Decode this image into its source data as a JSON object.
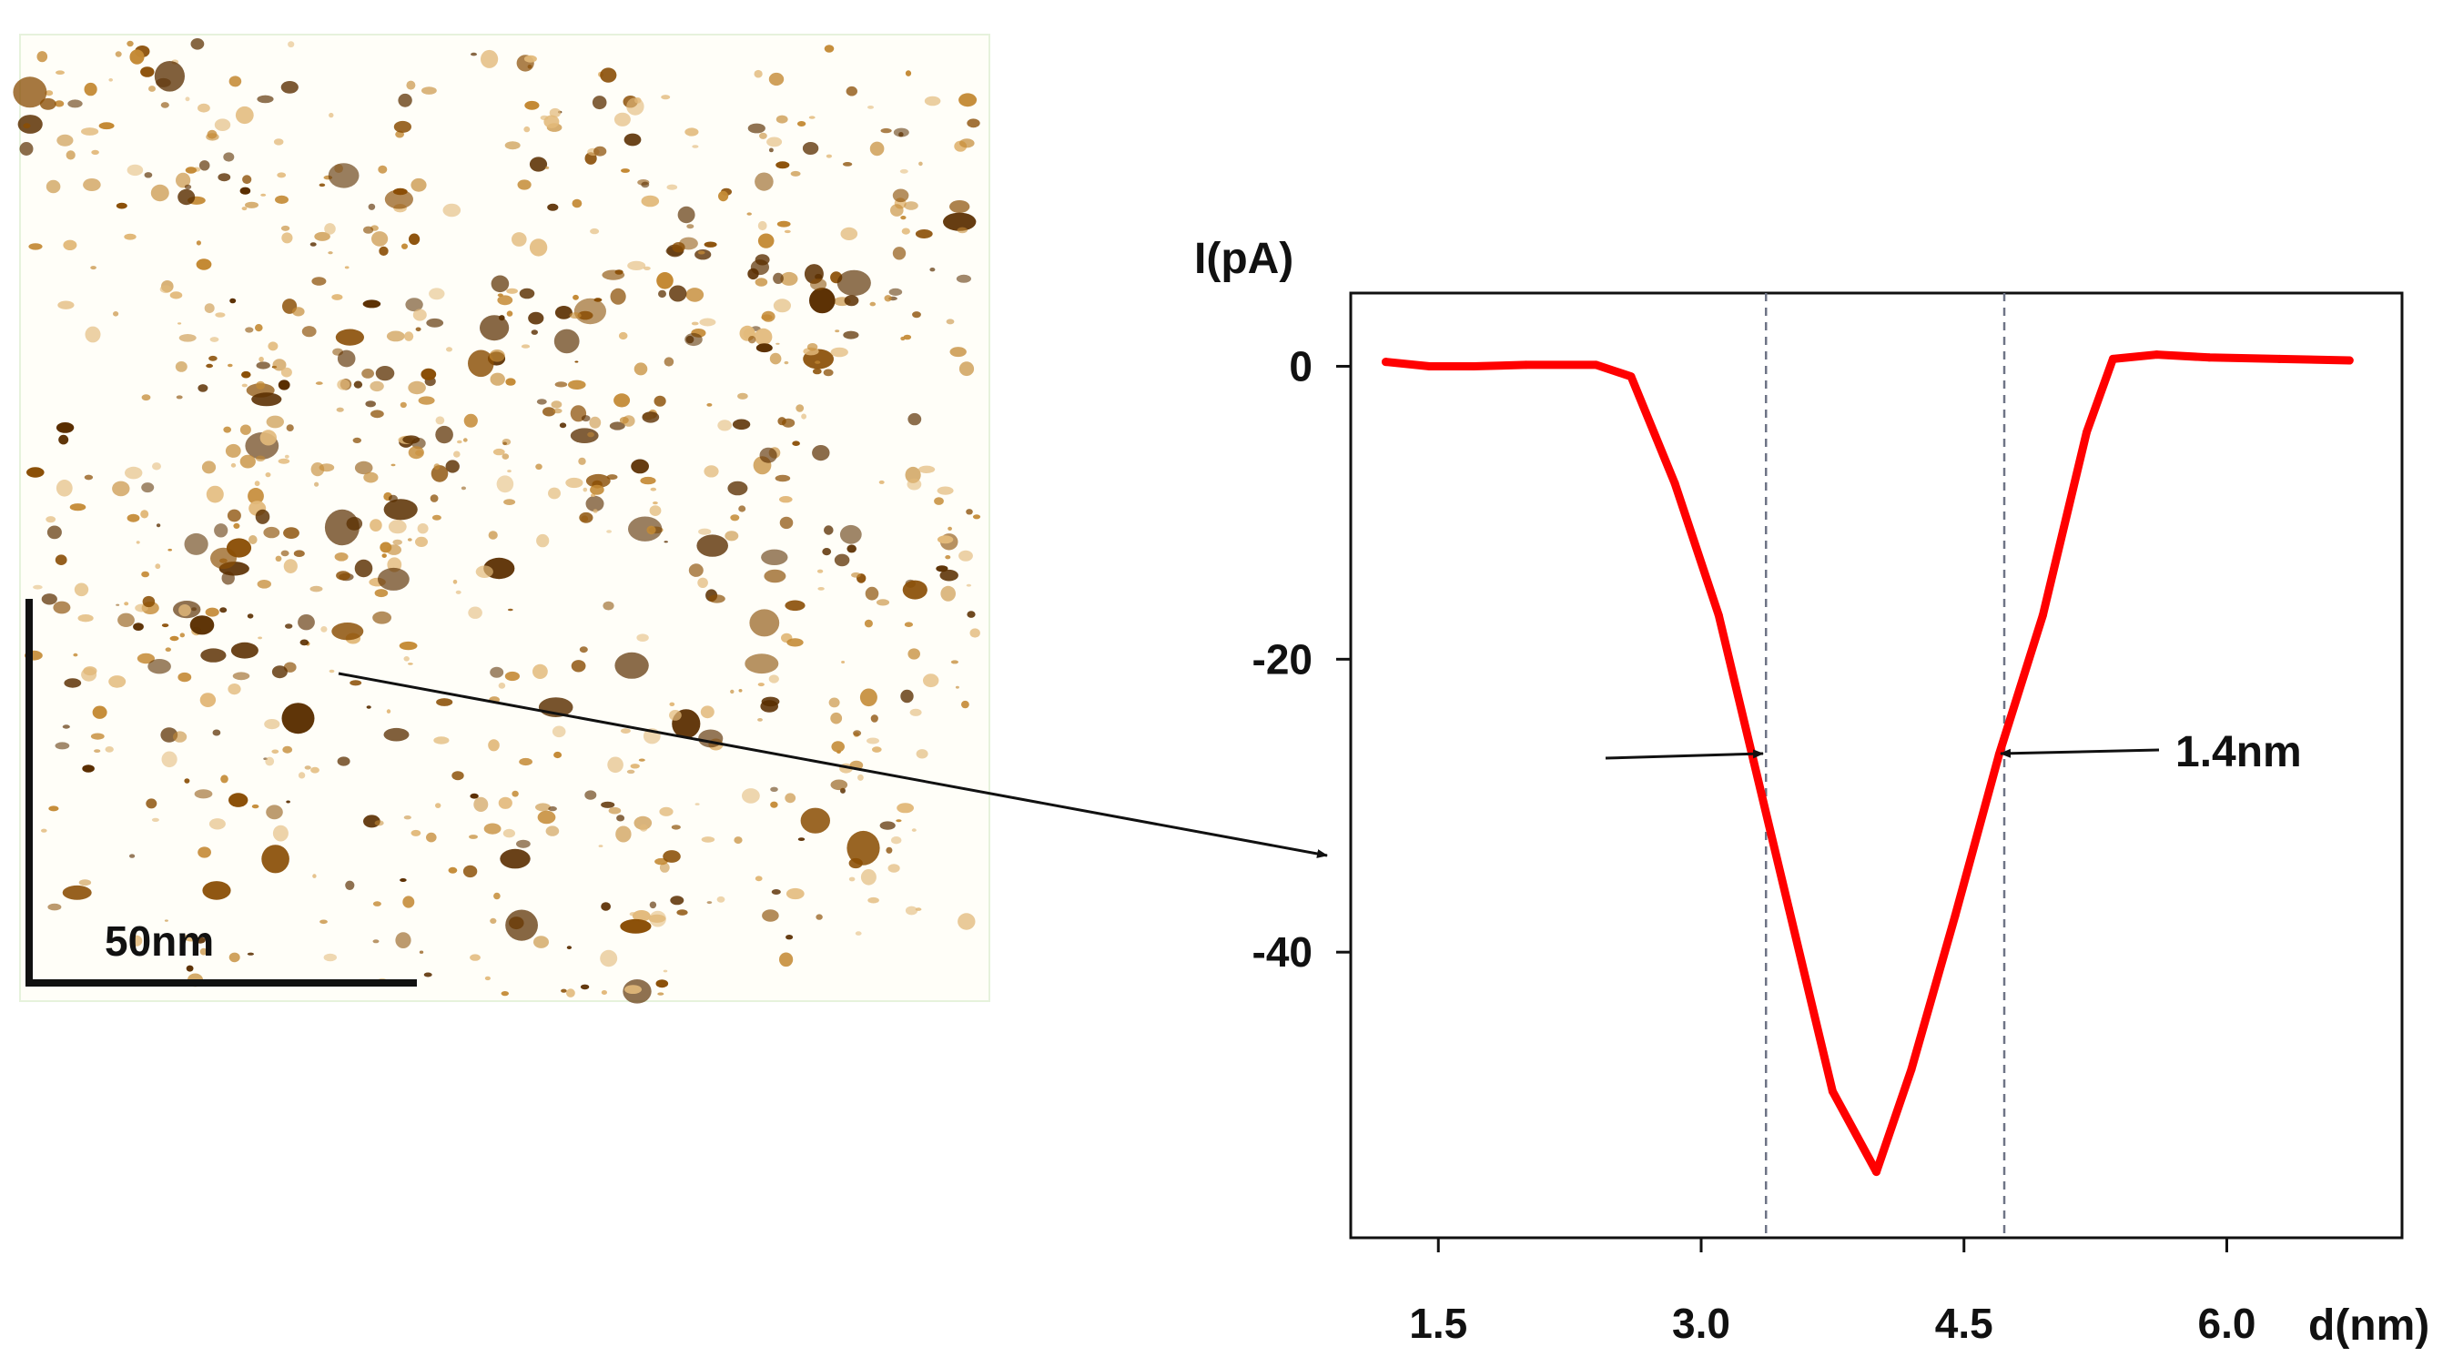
{
  "image_panel": {
    "scale_bar_label": "50nm",
    "colors": {
      "background": "#fffef8",
      "light": "#e2b97a",
      "mid": "#c48a35",
      "dark": "#8a4e05",
      "darkest": "#5a2e00"
    }
  },
  "chart_data": {
    "type": "line",
    "title": "",
    "xlabel": "d(nm)",
    "ylabel": "I(pA)",
    "xlim": [
      1.0,
      7.0
    ],
    "ylim": [
      -59.5,
      5
    ],
    "xticks": [
      "1.5",
      "3.0",
      "4.5",
      "6.0"
    ],
    "xtick_values": [
      1.5,
      3.0,
      4.5,
      6.0
    ],
    "yticks": [
      "0",
      "-20",
      "-40"
    ],
    "ytick_values": [
      0,
      -20,
      -40
    ],
    "grid": false,
    "series": [
      {
        "color": "#ff0000",
        "x": [
          1.2,
          1.45,
          1.7,
          2.0,
          2.4,
          2.6,
          2.85,
          3.1,
          3.3,
          3.5,
          3.75,
          4.0,
          4.2,
          4.45,
          4.7,
          4.95,
          5.2,
          5.35,
          5.6,
          5.9,
          6.3,
          6.7
        ],
        "y": [
          0.3,
          0.0,
          0.0,
          0.1,
          0.1,
          -0.7,
          -8.0,
          -17.0,
          -27.0,
          -37.0,
          -49.5,
          -55.0,
          -48.0,
          -37.5,
          -26.5,
          -17.0,
          -4.5,
          0.5,
          0.8,
          0.6,
          0.5,
          0.4
        ]
      }
    ],
    "reference_lines_x": [
      3.37,
      4.73
    ],
    "annotations": [
      {
        "text": "1.4nm"
      }
    ],
    "colors": {
      "curve": "#ff0000",
      "reference_line": "#6e7486",
      "axis": "#111111"
    }
  }
}
